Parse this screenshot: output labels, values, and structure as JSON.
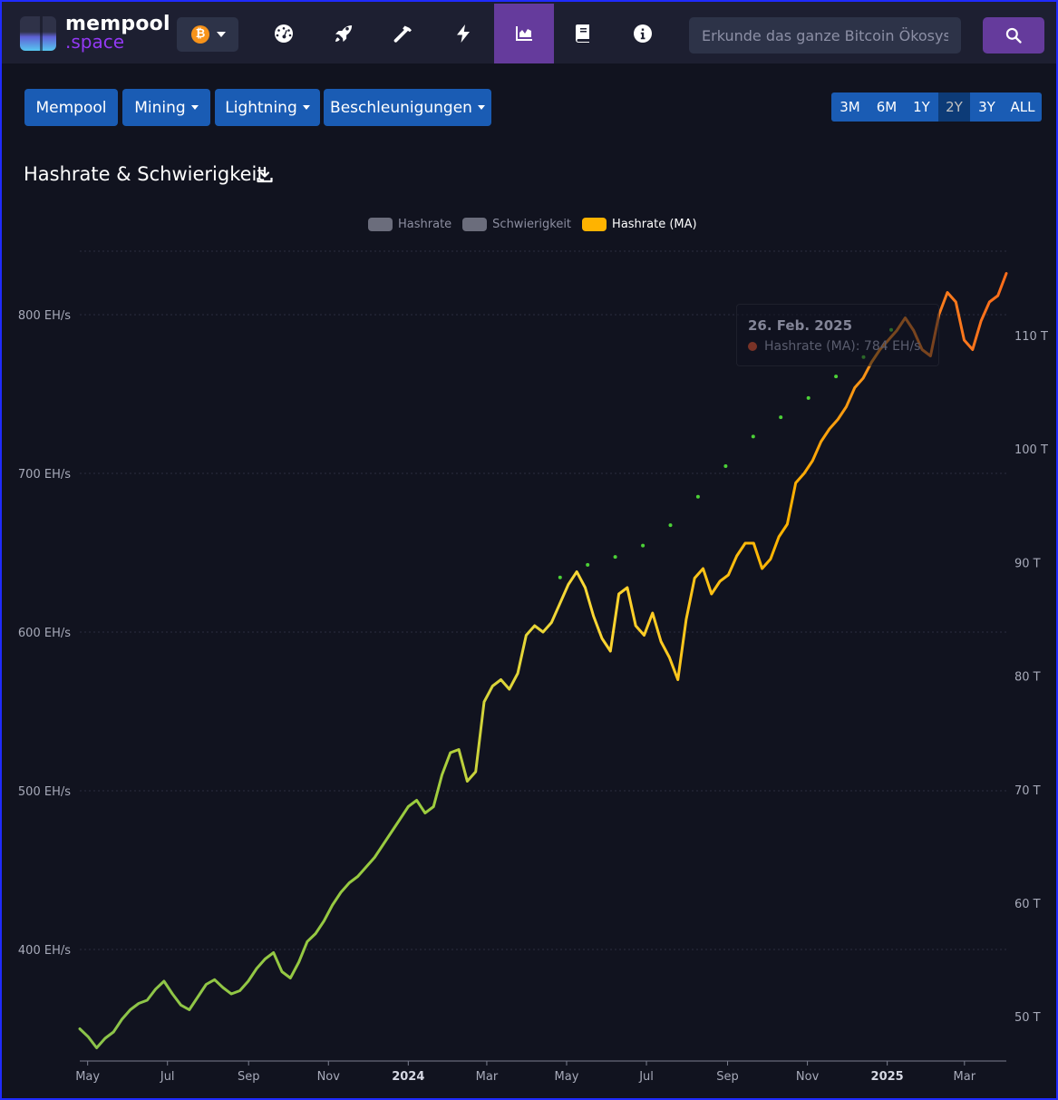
{
  "navbar": {
    "logo_main": "mempool",
    "logo_sub": ".space",
    "network_symbol": "₿",
    "icons": [
      "dashboard-icon",
      "rocket-icon",
      "hammer-icon",
      "lightning-icon",
      "chart-icon",
      "book-icon",
      "info-icon"
    ],
    "active_icon": "chart-icon",
    "search_placeholder": "Erkunde das ganze Bitcoin Ökosystem",
    "accent": "#653b9c"
  },
  "menu": {
    "mempool": "Mempool",
    "mining": "Mining",
    "lightning": "Lightning",
    "accelerations": "Beschleunigungen"
  },
  "ranges": [
    "3M",
    "6M",
    "1Y",
    "2Y",
    "3Y",
    "ALL"
  ],
  "active_range": "2Y",
  "chart_title": "Hashrate & Schwierigkeit",
  "legend": [
    {
      "label": "Hashrate",
      "color": "#6b6d7c",
      "active": false
    },
    {
      "label": "Schwierigkeit",
      "color": "#6b6d7c",
      "active": false
    },
    {
      "label": "Hashrate (MA)",
      "color": "#ffb300",
      "active": true
    }
  ],
  "tooltip": {
    "date": "26. Feb. 2025",
    "text": "Hashrate (MA): 784 EH/s"
  },
  "chart_data": {
    "type": "line",
    "x_ticks": [
      "May",
      "Jul",
      "Sep",
      "Nov",
      "2024",
      "Mar",
      "May",
      "Jul",
      "Sep",
      "Nov",
      "2025",
      "Mar"
    ],
    "bold_ticks": [
      "2024",
      "2025"
    ],
    "y_left_ticks": [
      "400 EH/s",
      "500 EH/s",
      "600 EH/s",
      "700 EH/s",
      "800 EH/s"
    ],
    "y_left_range": [
      346,
      838
    ],
    "y_right_ticks": [
      "50 T",
      "60 T",
      "70 T",
      "80 T",
      "90 T",
      "100 T",
      "110 T"
    ],
    "y_right_range": [
      47.6,
      117.3
    ],
    "series": [
      {
        "name": "Hashrate (MA)",
        "unit": "EH/s",
        "x_range": [
          "2023-04-25",
          "2025-04-02"
        ],
        "values": [
          350,
          345,
          338,
          344,
          348,
          356,
          362,
          366,
          368,
          375,
          380,
          372,
          365,
          362,
          370,
          378,
          381,
          376,
          372,
          374,
          380,
          388,
          394,
          398,
          386,
          382,
          392,
          405,
          410,
          418,
          428,
          436,
          442,
          446,
          452,
          458,
          466,
          474,
          482,
          490,
          494,
          486,
          490,
          510,
          524,
          526,
          506,
          512,
          556,
          566,
          570,
          564,
          574,
          598,
          604,
          600,
          606,
          618,
          630,
          638,
          628,
          610,
          596,
          588,
          624,
          628,
          604,
          598,
          612,
          594,
          584,
          570,
          608,
          634,
          640,
          624,
          632,
          636,
          648,
          656,
          656,
          640,
          646,
          660,
          668,
          694,
          700,
          708,
          720,
          728,
          734,
          742,
          754,
          760,
          770,
          778,
          784,
          790,
          798,
          790,
          778,
          774,
          800,
          814,
          808,
          784,
          778,
          796,
          808,
          812,
          826
        ]
      },
      {
        "name": "Schwierigkeit",
        "unit": "T",
        "x_range": [
          "2024-04-26",
          "2025-01-04"
        ],
        "values": [
          88.7,
          89.8,
          90.5,
          91.5,
          93.3,
          95.8,
          98.5,
          101.1,
          102.8,
          104.5,
          106.4,
          108.1,
          110.5
        ]
      }
    ]
  }
}
